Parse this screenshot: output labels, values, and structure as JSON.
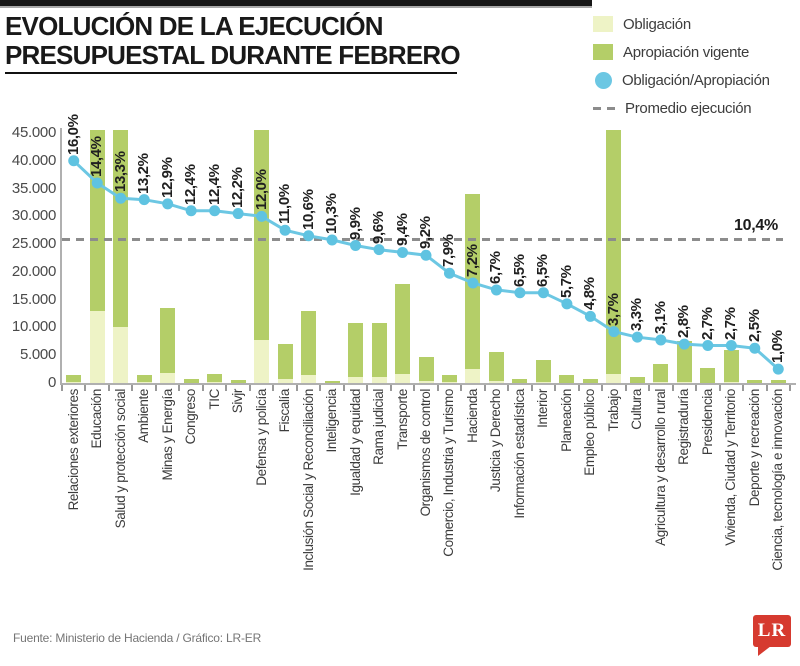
{
  "header": {
    "title_line1": "EVOLUCIÓN DE LA EJECUCIÓN",
    "title_line2": "PRESUPUESTAL DURANTE FEBRERO"
  },
  "legend": {
    "items": [
      {
        "label": "Obligación",
        "swatch": "square-light"
      },
      {
        "label": "Apropiación vigente",
        "swatch": "square-green"
      },
      {
        "label": "Obligación/Apropiación",
        "swatch": "dot-blue"
      },
      {
        "label": "Promedio ejecución",
        "swatch": "dashed-line"
      }
    ]
  },
  "footer": {
    "source": "Fuente: Ministerio de Hacienda / Gráfico: LR-ER",
    "logo_text": "LR"
  },
  "colors": {
    "obligacion": "#eef3c6",
    "apropiacion": "#b4ce68",
    "ratio_line": "#6cc7e3",
    "ratio_dot": "#5fc3e1",
    "dashed": "#8c8c8c",
    "axis": "#b0b0b0",
    "logo_red": "#d63a2f"
  },
  "chart_data": {
    "type": "bar+line",
    "title": "Evolución de la ejecución presupuestal durante febrero",
    "categories": [
      "Relaciones exteriores",
      "Educación",
      "Salud y protección social",
      "Ambiente",
      "Minas y Energía",
      "Congreso",
      "TIC",
      "Sivjr",
      "Defensa y policía",
      "Fiscalía",
      "Inclusión Social y Reconciliación",
      "Inteligencia",
      "Igualdad y equidad",
      "Rama judicial",
      "Transporte",
      "Organismos de control",
      "Comercio, Industria y Turismo",
      "Hacienda",
      "Justicia y Derecho",
      "Información estadística",
      "Interior",
      "Planeación",
      "Empleo público",
      "Trabajo",
      "Cultura",
      "Agricultura y desarrollo rural",
      "Registraduría",
      "Presidencia",
      "Vivienda, Ciudad y Territorio",
      "Deporte y recreación",
      "Ciencia, tecnología e innovación"
    ],
    "series": [
      {
        "name": "Obligación",
        "type": "bar",
        "values": [
          240,
          13000,
          10000,
          200,
          1740,
          75,
          200,
          75,
          7800,
          770,
          1380,
          30,
          1070,
          1040,
          1670,
          430,
          120,
          2450,
          370,
          45,
          265,
          85,
          35,
          1680,
          35,
          110,
          210,
          75,
          160,
          15,
          5
        ]
      },
      {
        "name": "Apropiación vigente",
        "type": "bar",
        "values": [
          1500,
          45500,
          45500,
          1500,
          13500,
          700,
          1600,
          600,
          45500,
          7000,
          13000,
          300,
          10800,
          10800,
          17800,
          4700,
          1500,
          34000,
          5500,
          700,
          4100,
          1500,
          700,
          45500,
          1000,
          3500,
          7500,
          2700,
          6000,
          600,
          500
        ]
      },
      {
        "name": "Obligación/Apropiación",
        "type": "line",
        "unit": "%",
        "values": [
          16.0,
          14.4,
          13.3,
          13.2,
          12.9,
          12.4,
          12.4,
          12.2,
          12.0,
          11.0,
          10.6,
          10.3,
          9.9,
          9.6,
          9.4,
          9.2,
          7.9,
          7.2,
          6.7,
          6.5,
          6.5,
          5.7,
          4.8,
          3.7,
          3.3,
          3.1,
          2.8,
          2.7,
          2.7,
          2.5,
          1.0
        ]
      }
    ],
    "point_labels": [
      "16,0%",
      "14,4%",
      "13,3%",
      "13,2%",
      "12,9%",
      "12,4%",
      "12,4%",
      "12,2%",
      "12,0%",
      "11,0%",
      "10,6%",
      "10,3%",
      "9,9%",
      "9,6%",
      "9,4%",
      "9,2%",
      "7,9%",
      "7,2%",
      "6,7%",
      "6,5%",
      "6,5%",
      "5,7%",
      "4,8%",
      "3,7%",
      "3,3%",
      "3,1%",
      "2,8%",
      "2,7%",
      "2,7%",
      "2,5%",
      "1,0%"
    ],
    "y_ticks": [
      {
        "label": "0",
        "value": 0
      },
      {
        "label": "5.000",
        "value": 5000
      },
      {
        "label": "10.000",
        "value": 10000
      },
      {
        "label": "15.000",
        "value": 15000
      },
      {
        "label": "20.000",
        "value": 20000
      },
      {
        "label": "25.000",
        "value": 25000
      },
      {
        "label": "30.000",
        "value": 30000
      },
      {
        "label": "35.000",
        "value": 35000
      },
      {
        "label": "40.000",
        "value": 40000
      },
      {
        "label": "45.000",
        "value": 45000
      }
    ],
    "ylim": [
      0,
      45000
    ],
    "pct_to_axis_factor": 2500,
    "average_line": {
      "pct": 10.4,
      "label": "10,4%",
      "name": "Promedio ejecución"
    },
    "legend_position": "top-right",
    "grid": "off"
  }
}
